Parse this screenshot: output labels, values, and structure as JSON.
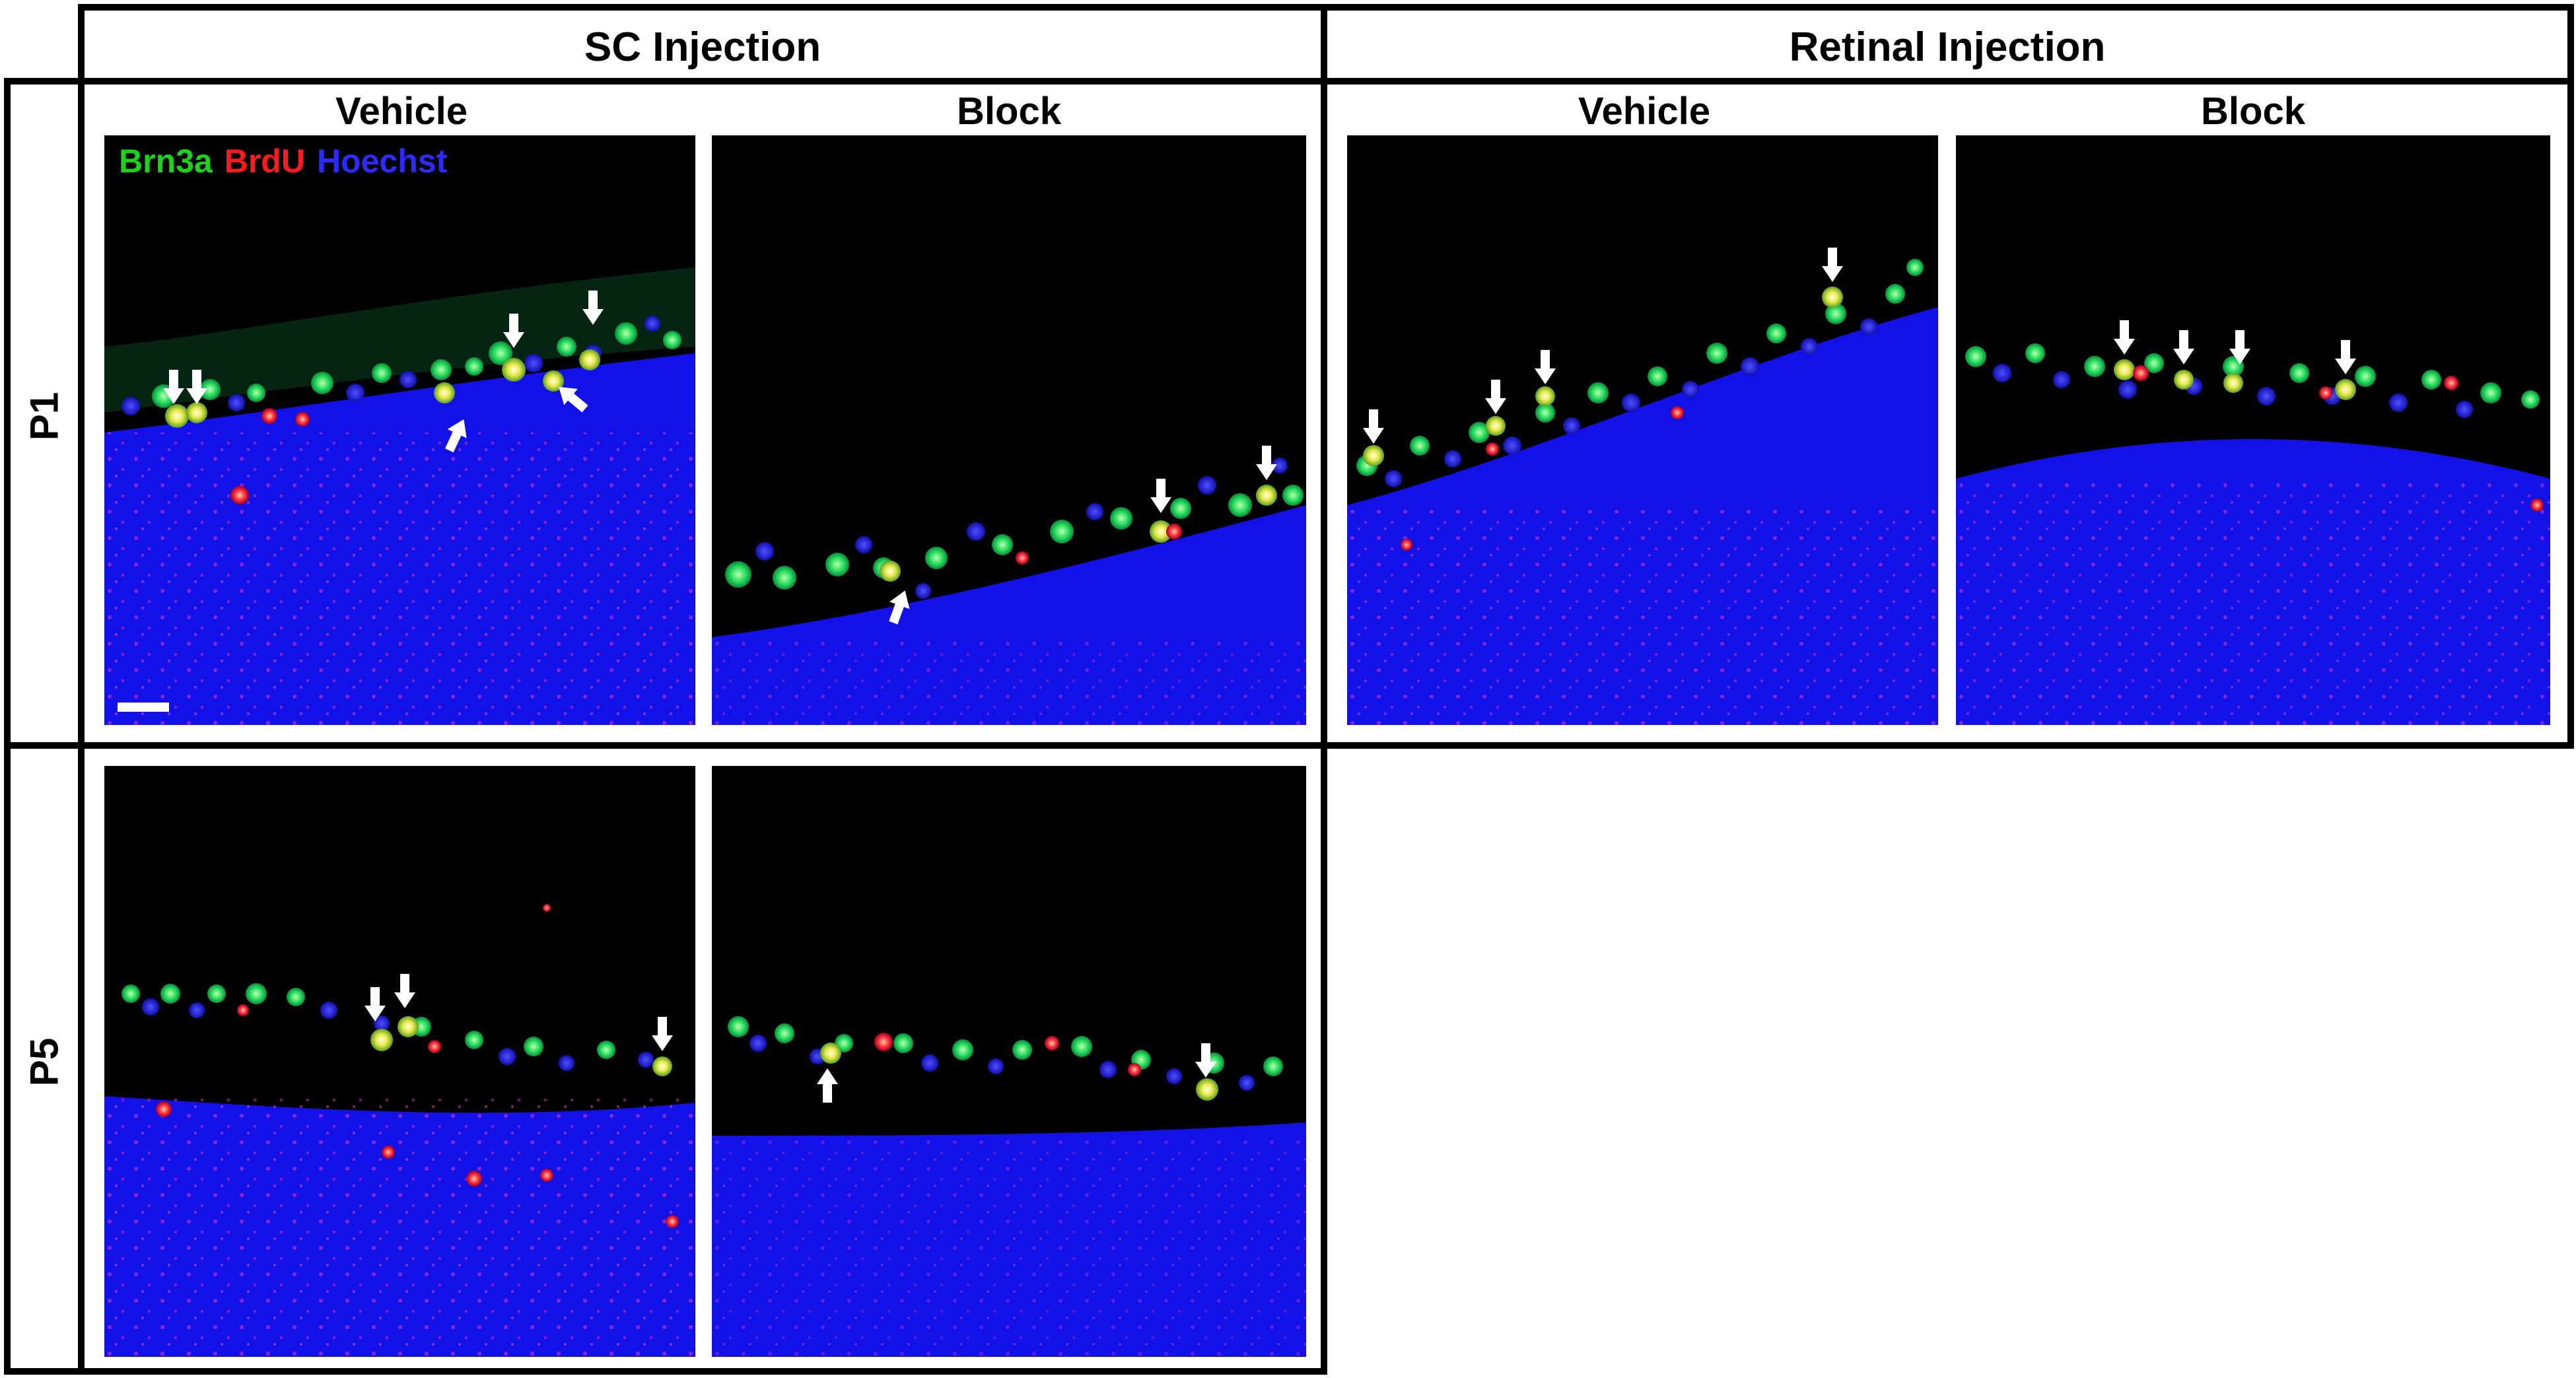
{
  "columns": {
    "sc": {
      "label": "SC Injection"
    },
    "retinal": {
      "label": "Retinal Injection"
    }
  },
  "rows": {
    "p1": {
      "label": "P1"
    },
    "p5": {
      "label": "P5"
    }
  },
  "conditions": {
    "sc_vehicle": "Vehicle",
    "sc_block": "Block",
    "ret_vehicle": "Vehicle",
    "ret_block": "Block"
  },
  "legend": {
    "green": {
      "label": "Brn3a",
      "color": "#19d419"
    },
    "red": {
      "label": "BrdU",
      "color": "#ff1a1a"
    },
    "blue": {
      "label": "Hoechst",
      "color": "#2b2bff"
    }
  },
  "colors": {
    "tissue_blue": "#1414f0",
    "cell_green": "#22d95a",
    "cell_red": "#ff2040",
    "background": "#000000",
    "arrow": "#ffffff"
  }
}
